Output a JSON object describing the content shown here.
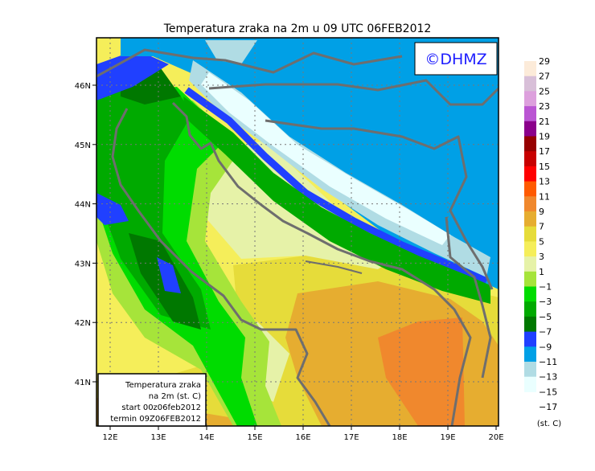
{
  "title": "Temperatura zraka na 2m u 09 UTC 06FEB2012",
  "logo": "©DHMZ",
  "info_box": {
    "line1": "Temperatura zraka",
    "line2": "na 2m (st. C)",
    "line3": "start 00z06feb2012",
    "line4": "termin 09Z06FEB2012"
  },
  "axes": {
    "lon_labels": [
      "12E",
      "13E",
      "14E",
      "15E",
      "16E",
      "17E",
      "18E",
      "19E",
      "20E"
    ],
    "lat_labels": [
      "46N",
      "45N",
      "44N",
      "43N",
      "42N",
      "41N"
    ]
  },
  "legend": {
    "unit": "(st. C)",
    "labels": [
      "29",
      "27",
      "25",
      "23",
      "21",
      "19",
      "17",
      "15",
      "13",
      "11",
      "9",
      "7",
      "5",
      "3",
      "1",
      "−1",
      "−3",
      "−5",
      "−7",
      "−9",
      "−11",
      "−13",
      "−15",
      "−17"
    ],
    "colors": [
      "#fcebd9",
      "#d8bfd8",
      "#dda0dd",
      "#ba55d3",
      "#8b008b",
      "#960000",
      "#c80000",
      "#ff0000",
      "#ff5a00",
      "#f0882d",
      "#e6ad30",
      "#e6dc3a",
      "#f5ee5a",
      "#e6f2a8",
      "#a6e43a",
      "#00dc00",
      "#00aa00",
      "#007800",
      "#2040ff",
      "#00a0e6",
      "#b0dce4",
      "#eaffff"
    ]
  }
}
